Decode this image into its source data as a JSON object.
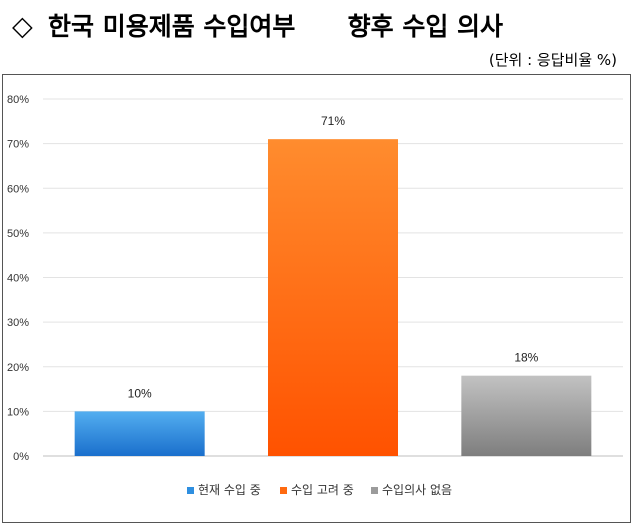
{
  "header": {
    "diamond": "◇",
    "title": "한국 미용제품 수입여부      향후 수입 의사",
    "unit_note": "(단위 : 응답비율 %)"
  },
  "chart_data": {
    "type": "bar",
    "categories": [
      "현재 수입 중",
      "수입 고려 중",
      "수입의사 없음"
    ],
    "values": [
      10,
      71,
      18
    ],
    "data_labels": [
      "10%",
      "71%",
      "18%"
    ],
    "colors": [
      "#2e8fe0",
      "#ff6a10",
      "#9b9b9b"
    ],
    "ylim": [
      0,
      80
    ],
    "yticks": [
      "0%",
      "10%",
      "20%",
      "30%",
      "40%",
      "50%",
      "60%",
      "70%",
      "80%"
    ],
    "grid": true,
    "legend_position": "bottom",
    "title": "",
    "xlabel": "",
    "ylabel": ""
  }
}
